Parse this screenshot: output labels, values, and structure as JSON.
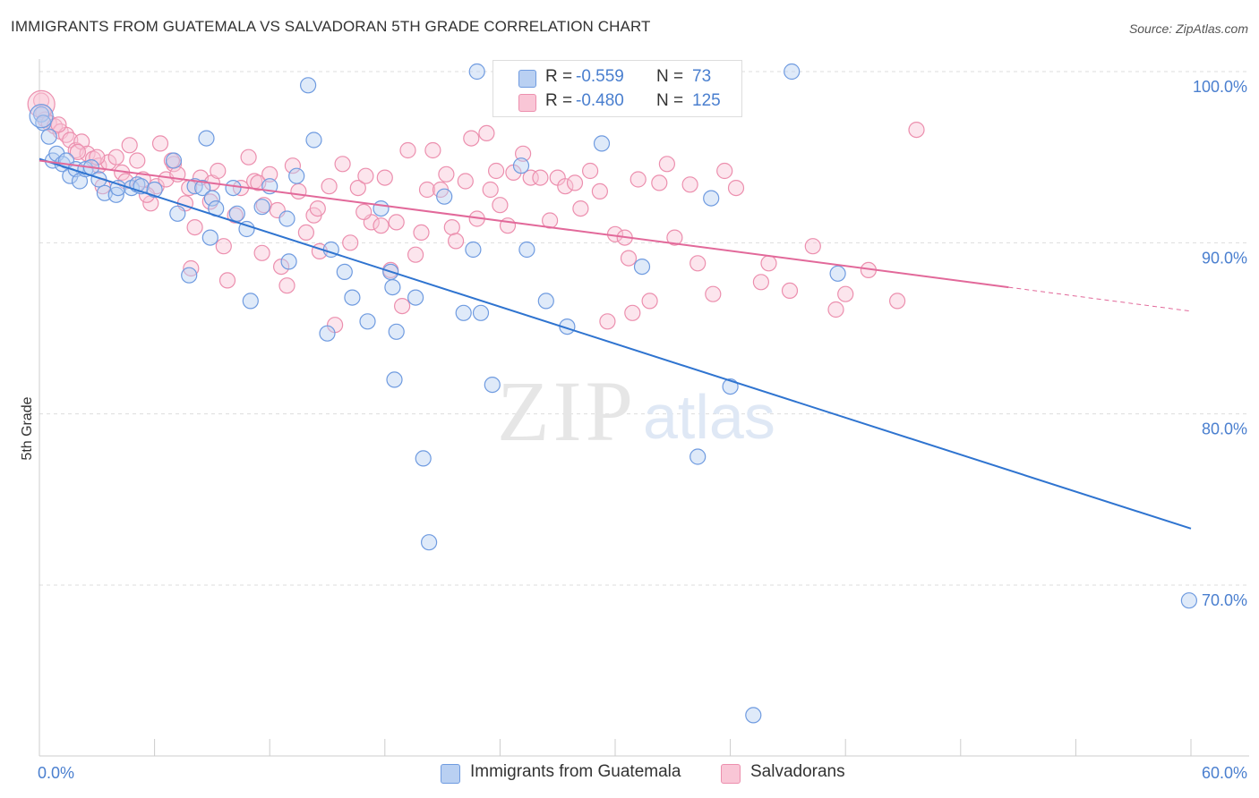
{
  "header": {
    "title": "IMMIGRANTS FROM GUATEMALA VS SALVADORAN 5TH GRADE CORRELATION CHART",
    "source": "Source: ZipAtlas.com"
  },
  "watermark": {
    "zip": "ZIP",
    "atlas": "atlas"
  },
  "legend": {
    "series1": {
      "r_label": "R =",
      "r_value": "-0.559",
      "n_label": "N =",
      "n_value": "73"
    },
    "series2": {
      "r_label": "R =",
      "r_value": "-0.480",
      "n_label": "N =",
      "n_value": "125"
    }
  },
  "colors": {
    "blue_fill": "#b9d0f2",
    "blue_stroke": "#6f9be0",
    "blue_line": "#2f74d0",
    "pink_fill": "#f9c6d6",
    "pink_stroke": "#ec8fae",
    "pink_line": "#e2699a",
    "grid": "#dddddd",
    "axis_text": "#4a7fcf"
  },
  "chart_data": {
    "type": "scatter",
    "title": "IMMIGRANTS FROM GUATEMALA VS SALVADORAN 5TH GRADE CORRELATION CHART",
    "xlabel": "",
    "ylabel": "5th Grade",
    "xlim": [
      0,
      60
    ],
    "ylim": [
      60,
      101.5
    ],
    "x_tick_labels": [
      "0.0%",
      "60.0%"
    ],
    "y_tick_labels": [
      "100.0%",
      "90.0%",
      "80.0%",
      "70.0%"
    ],
    "y_ticks": [
      100,
      90,
      80,
      70
    ],
    "grid": true,
    "legend_position": "bottom",
    "series": [
      {
        "name": "Immigrants from Guatemala",
        "color": "#6f9be0",
        "r": -0.559,
        "n": 73,
        "trend": {
          "x": [
            0,
            60
          ],
          "y": [
            94.9,
            73.3
          ]
        },
        "points": [
          [
            0.1,
            97.5
          ],
          [
            0.2,
            97.0
          ],
          [
            0.5,
            96.2
          ],
          [
            0.7,
            94.8
          ],
          [
            0.9,
            95.2
          ],
          [
            1.2,
            94.6
          ],
          [
            1.4,
            94.8
          ],
          [
            1.6,
            93.9
          ],
          [
            1.9,
            94.3
          ],
          [
            2.1,
            93.6
          ],
          [
            2.4,
            94.3
          ],
          [
            2.7,
            94.4
          ],
          [
            3.1,
            93.7
          ],
          [
            3.4,
            92.9
          ],
          [
            4.0,
            92.8
          ],
          [
            4.1,
            93.2
          ],
          [
            4.8,
            93.2
          ],
          [
            5.1,
            93.4
          ],
          [
            5.3,
            93.3
          ],
          [
            6.0,
            93.1
          ],
          [
            7.0,
            94.8
          ],
          [
            8.1,
            93.3
          ],
          [
            7.2,
            91.7
          ],
          [
            7.8,
            88.1
          ],
          [
            8.5,
            93.2
          ],
          [
            8.7,
            96.1
          ],
          [
            8.9,
            90.3
          ],
          [
            9.0,
            92.6
          ],
          [
            9.2,
            92.0
          ],
          [
            10.1,
            93.2
          ],
          [
            10.3,
            91.7
          ],
          [
            10.8,
            90.8
          ],
          [
            11.0,
            86.6
          ],
          [
            11.6,
            92.1
          ],
          [
            12.0,
            93.3
          ],
          [
            12.9,
            91.4
          ],
          [
            13.0,
            88.9
          ],
          [
            13.4,
            93.9
          ],
          [
            14.0,
            99.2
          ],
          [
            14.3,
            96.0
          ],
          [
            15.0,
            84.7
          ],
          [
            15.2,
            89.6
          ],
          [
            15.9,
            88.3
          ],
          [
            16.3,
            86.8
          ],
          [
            17.1,
            85.4
          ],
          [
            17.8,
            92.0
          ],
          [
            18.3,
            88.3
          ],
          [
            18.4,
            87.4
          ],
          [
            18.5,
            82.0
          ],
          [
            18.6,
            84.8
          ],
          [
            19.6,
            86.8
          ],
          [
            20.0,
            77.4
          ],
          [
            20.3,
            72.5
          ],
          [
            21.1,
            92.7
          ],
          [
            22.1,
            85.9
          ],
          [
            22.6,
            89.6
          ],
          [
            23.0,
            85.9
          ],
          [
            23.6,
            81.7
          ],
          [
            24.5,
            99.2
          ],
          [
            25.1,
            94.5
          ],
          [
            25.4,
            89.6
          ],
          [
            26.4,
            86.6
          ],
          [
            27.5,
            85.1
          ],
          [
            29.3,
            95.8
          ],
          [
            31.4,
            88.6
          ],
          [
            34.3,
            77.5
          ],
          [
            35.0,
            92.6
          ],
          [
            36.0,
            81.6
          ],
          [
            37.2,
            62.4
          ],
          [
            39.2,
            100.0
          ],
          [
            41.6,
            88.2
          ],
          [
            59.9,
            69.1
          ],
          [
            22.8,
            100.0
          ]
        ]
      },
      {
        "name": "Salvadorans",
        "color": "#ec8fae",
        "r": -0.48,
        "n": 125,
        "trend": {
          "x": [
            0,
            50.5
          ],
          "y": [
            94.8,
            87.4
          ]
        },
        "trend_dashed": {
          "x": [
            50.5,
            60
          ],
          "y": [
            87.4,
            86.0
          ]
        },
        "points": [
          [
            0.1,
            98.3
          ],
          [
            0.2,
            97.6
          ],
          [
            0.3,
            97.2
          ],
          [
            0.5,
            97.0
          ],
          [
            0.8,
            96.8
          ],
          [
            1.1,
            96.5
          ],
          [
            1.4,
            96.3
          ],
          [
            1.6,
            96.0
          ],
          [
            1.9,
            95.4
          ],
          [
            2.2,
            95.9
          ],
          [
            2.5,
            95.2
          ],
          [
            2.8,
            94.9
          ],
          [
            3.1,
            94.5
          ],
          [
            3.3,
            93.3
          ],
          [
            3.6,
            94.7
          ],
          [
            4.0,
            95.0
          ],
          [
            4.3,
            94.1
          ],
          [
            4.7,
            95.7
          ],
          [
            5.1,
            94.8
          ],
          [
            5.4,
            93.7
          ],
          [
            5.8,
            92.3
          ],
          [
            6.1,
            93.3
          ],
          [
            6.3,
            95.8
          ],
          [
            6.6,
            93.7
          ],
          [
            7.0,
            94.6
          ],
          [
            7.2,
            94.0
          ],
          [
            7.6,
            92.3
          ],
          [
            7.8,
            93.2
          ],
          [
            7.9,
            88.5
          ],
          [
            8.1,
            90.9
          ],
          [
            8.4,
            93.8
          ],
          [
            8.9,
            92.4
          ],
          [
            9.0,
            93.5
          ],
          [
            9.3,
            94.2
          ],
          [
            9.6,
            89.8
          ],
          [
            9.8,
            87.8
          ],
          [
            10.2,
            91.6
          ],
          [
            10.5,
            93.2
          ],
          [
            10.9,
            95.0
          ],
          [
            11.2,
            93.6
          ],
          [
            11.4,
            93.5
          ],
          [
            11.7,
            92.2
          ],
          [
            12.0,
            94.0
          ],
          [
            12.4,
            91.9
          ],
          [
            12.6,
            88.6
          ],
          [
            12.9,
            87.5
          ],
          [
            13.2,
            94.5
          ],
          [
            13.5,
            93.0
          ],
          [
            13.9,
            90.6
          ],
          [
            14.3,
            91.6
          ],
          [
            14.5,
            92.0
          ],
          [
            14.6,
            89.5
          ],
          [
            15.1,
            93.3
          ],
          [
            15.4,
            85.2
          ],
          [
            15.8,
            94.6
          ],
          [
            16.2,
            90.0
          ],
          [
            16.6,
            93.2
          ],
          [
            17.0,
            93.9
          ],
          [
            17.3,
            91.2
          ],
          [
            17.8,
            91.0
          ],
          [
            18.0,
            93.8
          ],
          [
            18.3,
            88.4
          ],
          [
            18.6,
            91.2
          ],
          [
            18.9,
            86.3
          ],
          [
            19.2,
            95.4
          ],
          [
            19.6,
            89.3
          ],
          [
            19.9,
            90.6
          ],
          [
            20.2,
            93.1
          ],
          [
            20.5,
            95.4
          ],
          [
            20.9,
            93.1
          ],
          [
            21.2,
            94.0
          ],
          [
            21.5,
            90.9
          ],
          [
            21.7,
            90.1
          ],
          [
            22.2,
            93.6
          ],
          [
            22.5,
            96.1
          ],
          [
            22.8,
            91.4
          ],
          [
            23.3,
            96.4
          ],
          [
            23.5,
            93.1
          ],
          [
            23.8,
            94.2
          ],
          [
            24.0,
            92.2
          ],
          [
            24.4,
            91.0
          ],
          [
            24.7,
            94.1
          ],
          [
            25.2,
            95.2
          ],
          [
            25.6,
            93.8
          ],
          [
            26.1,
            93.8
          ],
          [
            26.6,
            91.3
          ],
          [
            27.0,
            93.8
          ],
          [
            27.4,
            93.3
          ],
          [
            27.9,
            93.5
          ],
          [
            28.2,
            92.0
          ],
          [
            28.7,
            94.2
          ],
          [
            29.2,
            93.0
          ],
          [
            29.6,
            85.4
          ],
          [
            30.0,
            90.5
          ],
          [
            30.5,
            90.3
          ],
          [
            30.7,
            89.1
          ],
          [
            30.9,
            85.9
          ],
          [
            31.2,
            93.7
          ],
          [
            31.8,
            86.6
          ],
          [
            32.3,
            93.5
          ],
          [
            32.7,
            94.6
          ],
          [
            33.1,
            90.3
          ],
          [
            33.9,
            93.4
          ],
          [
            34.3,
            88.8
          ],
          [
            35.1,
            87.0
          ],
          [
            35.7,
            94.2
          ],
          [
            36.3,
            93.2
          ],
          [
            37.6,
            87.7
          ],
          [
            38.0,
            88.8
          ],
          [
            39.1,
            87.2
          ],
          [
            40.3,
            89.8
          ],
          [
            41.5,
            86.1
          ],
          [
            42.0,
            87.0
          ],
          [
            43.2,
            88.4
          ],
          [
            44.7,
            86.6
          ],
          [
            45.7,
            96.6
          ],
          [
            1.0,
            96.9
          ],
          [
            2.0,
            95.3
          ],
          [
            3.0,
            95.0
          ],
          [
            4.5,
            93.6
          ],
          [
            5.6,
            92.8
          ],
          [
            6.9,
            94.8
          ],
          [
            11.6,
            89.4
          ],
          [
            16.9,
            91.8
          ],
          [
            26.4,
            100.0
          ]
        ]
      }
    ]
  },
  "bottom_legend": {
    "series1_label": "Immigrants from Guatemala",
    "series2_label": "Salvadorans"
  }
}
